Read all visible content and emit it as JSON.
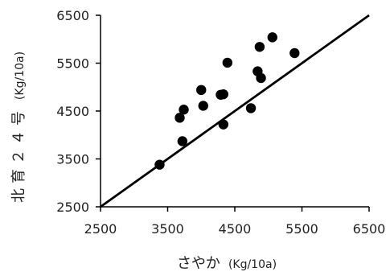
{
  "chart_data": {
    "type": "scatter",
    "title": "",
    "xlabel": {
      "main": "さやか",
      "unit": "(Kg/10a)"
    },
    "ylabel": {
      "main": "北育２４号",
      "unit": "(Kg/10a)"
    },
    "xlim": [
      2500,
      6500
    ],
    "ylim": [
      2500,
      6500
    ],
    "x_ticks": [
      "2500",
      "3500",
      "4500",
      "5500",
      "6500"
    ],
    "y_ticks": [
      "2500",
      "3500",
      "4500",
      "5500",
      "6500"
    ],
    "reference_line": {
      "from": [
        2500,
        2500
      ],
      "to": [
        6500,
        6500
      ]
    },
    "grid": false,
    "marker_color": "#000000",
    "points": [
      {
        "x": 3380,
        "y": 3380
      },
      {
        "x": 3680,
        "y": 4360
      },
      {
        "x": 3720,
        "y": 3870
      },
      {
        "x": 3740,
        "y": 4530
      },
      {
        "x": 4000,
        "y": 4940
      },
      {
        "x": 4030,
        "y": 4610
      },
      {
        "x": 4290,
        "y": 4840
      },
      {
        "x": 4330,
        "y": 4850
      },
      {
        "x": 4330,
        "y": 4220
      },
      {
        "x": 4390,
        "y": 5510
      },
      {
        "x": 4740,
        "y": 4560
      },
      {
        "x": 4840,
        "y": 5330
      },
      {
        "x": 4870,
        "y": 5840
      },
      {
        "x": 4890,
        "y": 5190
      },
      {
        "x": 5060,
        "y": 6040
      },
      {
        "x": 5390,
        "y": 5710
      }
    ]
  }
}
